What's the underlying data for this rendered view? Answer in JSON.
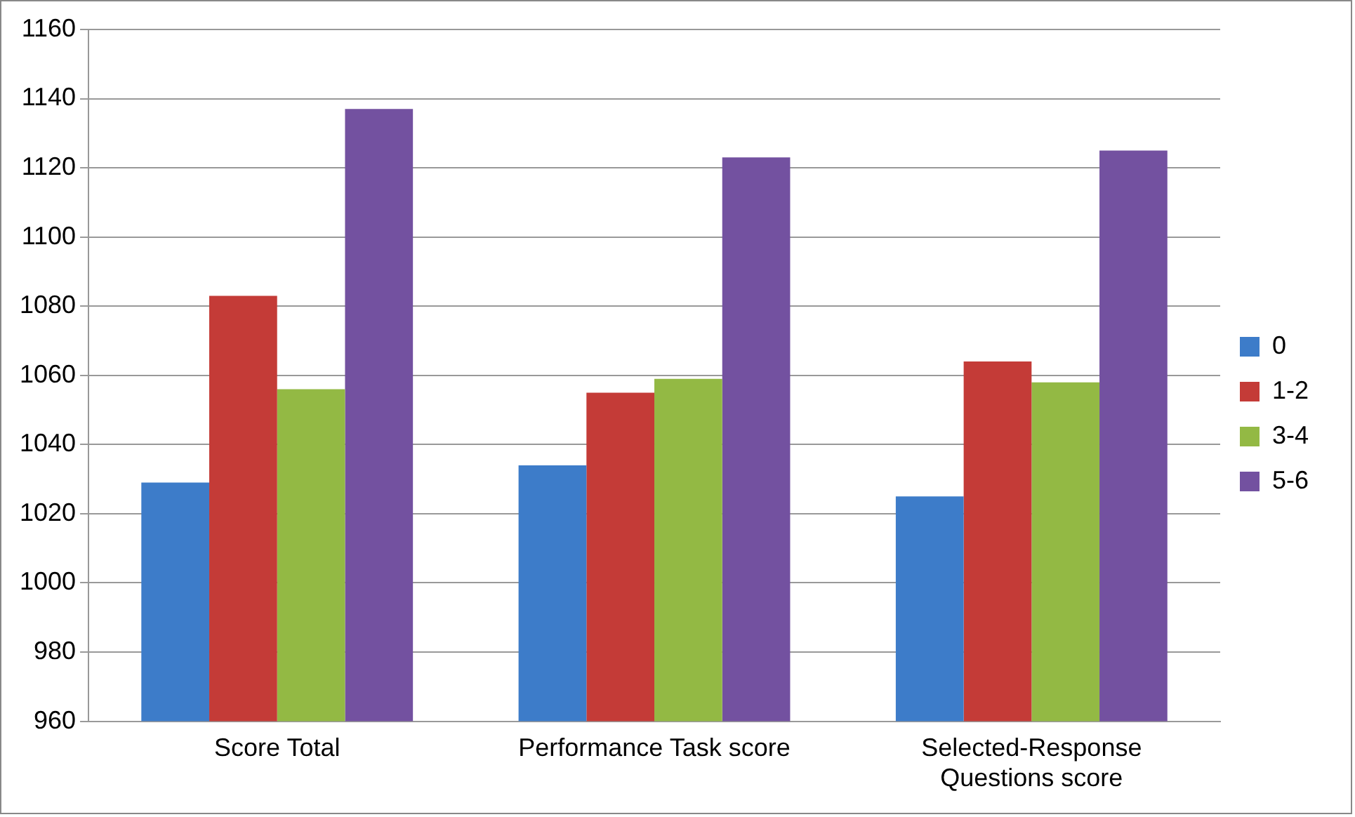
{
  "chart_data": {
    "type": "bar",
    "categories": [
      "Score Total",
      "Performance Task score",
      "Selected-Response Questions score"
    ],
    "series": [
      {
        "name": "0",
        "color": "#3d7cc9",
        "values": [
          1029,
          1034,
          1025
        ]
      },
      {
        "name": "1-2",
        "color": "#c43b37",
        "values": [
          1083,
          1055,
          1064
        ]
      },
      {
        "name": "3-4",
        "color": "#93b944",
        "values": [
          1056,
          1059,
          1058
        ]
      },
      {
        "name": "5-6",
        "color": "#7351a0",
        "values": [
          1137,
          1123,
          1125
        ]
      }
    ],
    "ylim": [
      960,
      1160
    ],
    "yticks": [
      960,
      980,
      1000,
      1020,
      1040,
      1060,
      1080,
      1100,
      1120,
      1140,
      1160
    ],
    "grid": "y",
    "legend": "right"
  }
}
